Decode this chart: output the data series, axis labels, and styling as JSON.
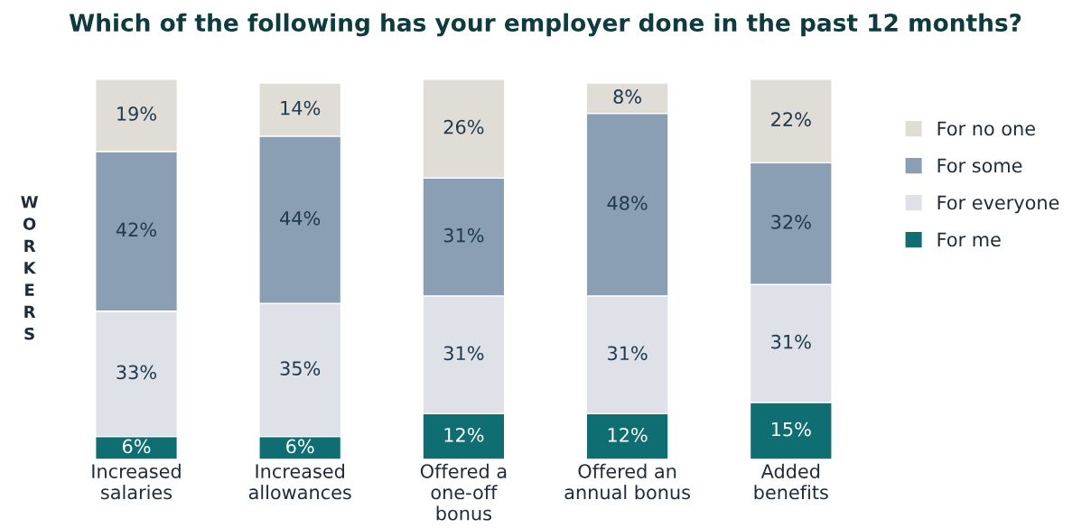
{
  "chart_data": {
    "type": "bar",
    "stacked": true,
    "legend": "right",
    "title": "Which of the following has your employer done in the past 12 months?",
    "ylabel": "WORKERS",
    "categories": [
      "Increased salaries",
      "Increased allowances",
      "Offered a one-off bonus",
      "Offered an annual bonus",
      "Added benefits"
    ],
    "series": [
      {
        "name": "For me",
        "color": "#0f6e72",
        "values": [
          6,
          6,
          12,
          12,
          15
        ],
        "value_labels": [
          "6%",
          "6%",
          "12%",
          "12%",
          "15%"
        ]
      },
      {
        "name": "For everyone",
        "color": "#dfe1e8",
        "values": [
          33,
          35,
          31,
          31,
          31
        ],
        "value_labels": [
          "33%",
          "35%",
          "31%",
          "31%",
          "31%"
        ]
      },
      {
        "name": "For some",
        "color": "#8a9fb3",
        "values": [
          42,
          44,
          31,
          48,
          32
        ],
        "value_labels": [
          "42%",
          "44%",
          "31%",
          "48%",
          "32%"
        ]
      },
      {
        "name": "For no one",
        "color": "#e0ddd6",
        "values": [
          19,
          14,
          26,
          8,
          22
        ],
        "value_labels": [
          "19%",
          "14%",
          "26%",
          "8%",
          "22%"
        ]
      }
    ]
  }
}
